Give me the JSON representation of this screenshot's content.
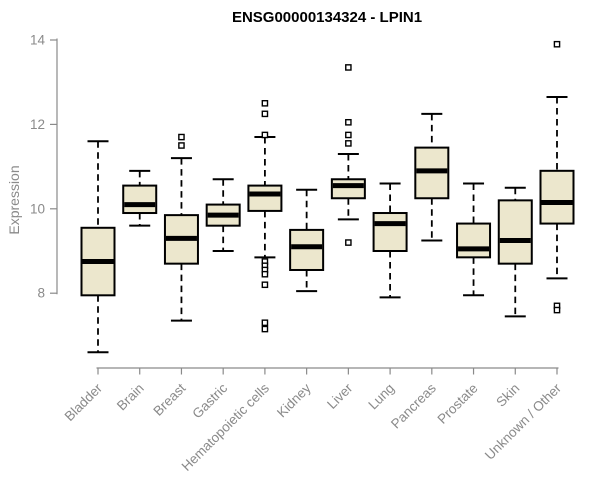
{
  "figure": {
    "title": "ENSG00000134324 - LPIN1",
    "y_axis_label": "Expression"
  },
  "chart_data": {
    "type": "boxplot",
    "title": "ENSG00000134324 - LPIN1",
    "xlabel": "",
    "ylabel": "Expression",
    "y_ticks": [
      8,
      10,
      12,
      14
    ],
    "ylim": [
      6.3,
      14.1
    ],
    "grid": "off",
    "legend": "none",
    "categories": [
      "Bladder",
      "Brain",
      "Breast",
      "Gastric",
      "Hematopoietic cells",
      "Kidney",
      "Liver",
      "Lung",
      "Pancreas",
      "Prostate",
      "Skin",
      "Unknown / Other"
    ],
    "boxes": [
      {
        "category": "Bladder",
        "whisker_low": 6.6,
        "q1": 7.95,
        "median": 8.75,
        "q3": 9.55,
        "whisker_high": 11.6,
        "outliers": []
      },
      {
        "category": "Brain",
        "whisker_low": 9.6,
        "q1": 9.9,
        "median": 10.1,
        "q3": 10.55,
        "whisker_high": 10.9,
        "outliers": []
      },
      {
        "category": "Breast",
        "whisker_low": 7.35,
        "q1": 8.7,
        "median": 9.3,
        "q3": 9.85,
        "whisker_high": 11.2,
        "outliers": [
          11.5,
          11.7
        ]
      },
      {
        "category": "Gastric",
        "whisker_low": 9.0,
        "q1": 9.6,
        "median": 9.85,
        "q3": 10.1,
        "whisker_high": 10.7,
        "outliers": []
      },
      {
        "category": "Hematopoietic cells",
        "whisker_low": 8.85,
        "q1": 9.95,
        "median": 10.35,
        "q3": 10.55,
        "whisker_high": 11.7,
        "outliers": [
          12.5,
          12.25,
          11.75,
          8.75,
          8.65,
          8.55,
          8.45,
          8.2,
          7.3,
          7.15
        ]
      },
      {
        "category": "Kidney",
        "whisker_low": 8.05,
        "q1": 8.55,
        "median": 9.1,
        "q3": 9.5,
        "whisker_high": 10.45,
        "outliers": []
      },
      {
        "category": "Liver",
        "whisker_low": 9.75,
        "q1": 10.25,
        "median": 10.55,
        "q3": 10.7,
        "whisker_high": 11.3,
        "outliers": [
          13.35,
          12.05,
          11.75,
          11.55,
          9.2
        ]
      },
      {
        "category": "Lung",
        "whisker_low": 7.9,
        "q1": 9.0,
        "median": 9.65,
        "q3": 9.9,
        "whisker_high": 10.6,
        "outliers": []
      },
      {
        "category": "Pancreas",
        "whisker_low": 9.25,
        "q1": 10.25,
        "median": 10.9,
        "q3": 11.45,
        "whisker_high": 12.25,
        "outliers": []
      },
      {
        "category": "Prostate",
        "whisker_low": 7.95,
        "q1": 8.85,
        "median": 9.05,
        "q3": 9.65,
        "whisker_high": 10.6,
        "outliers": []
      },
      {
        "category": "Skin",
        "whisker_low": 7.45,
        "q1": 8.7,
        "median": 9.25,
        "q3": 10.2,
        "whisker_high": 10.5,
        "outliers": []
      },
      {
        "category": "Unknown / Other",
        "whisker_low": 8.35,
        "q1": 9.65,
        "median": 10.15,
        "q3": 10.9,
        "whisker_high": 12.65,
        "outliers": [
          13.9,
          7.7,
          7.6
        ]
      }
    ],
    "style": {
      "box_fill": "#ece7cd",
      "box_border": "#000000",
      "median_color": "#000000",
      "whisker_color": "#000000",
      "outlier_color": "#000000",
      "outlier_shape": "open-square",
      "whisker_line": "dashed",
      "axis_color": "#8a8a8a",
      "tick_label_color": "#8a8a8a",
      "title_color": "#000000",
      "background": "#ffffff"
    }
  }
}
